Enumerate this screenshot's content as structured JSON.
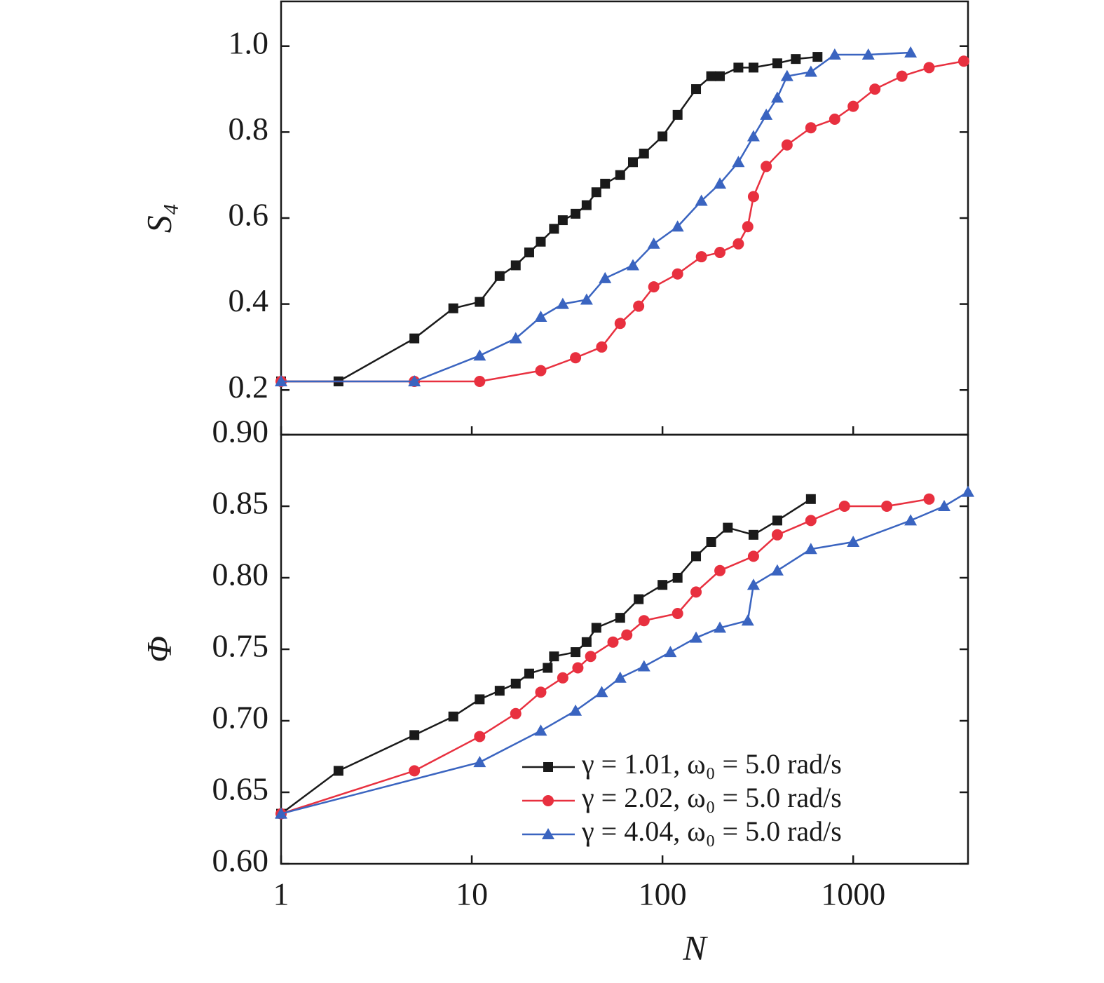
{
  "chart_data": [
    {
      "type": "line",
      "ylabel": "S₄",
      "xlim": [
        1,
        4000
      ],
      "log_x": true,
      "ylim": [
        0.096,
        1.104
      ],
      "yticks": [
        0.2,
        0.4,
        0.6,
        0.8,
        {
          "value": 1,
          "label": "1.0"
        }
      ],
      "series": [
        {
          "color": "#1a1a1a",
          "marker": "square",
          "x": [
            1,
            2,
            5,
            8,
            11,
            14,
            17,
            20,
            23,
            27,
            30,
            35,
            40,
            45,
            50,
            60,
            70,
            80,
            100,
            120,
            150,
            180,
            200,
            250,
            300,
            400,
            500,
            650
          ],
          "values": [
            0.22,
            0.22,
            0.32,
            0.39,
            0.405,
            0.465,
            0.49,
            0.52,
            0.545,
            0.575,
            0.595,
            0.61,
            0.63,
            0.66,
            0.68,
            0.7,
            0.73,
            0.75,
            0.79,
            0.84,
            0.9,
            0.93,
            0.93,
            0.95,
            0.95,
            0.96,
            0.97,
            0.975
          ]
        },
        {
          "color": "#e8303f",
          "marker": "circle",
          "x": [
            1,
            5,
            11,
            23,
            35,
            48,
            60,
            75,
            90,
            120,
            160,
            200,
            250,
            280,
            300,
            350,
            450,
            600,
            800,
            1000,
            1300,
            1800,
            2500,
            3800
          ],
          "values": [
            0.22,
            0.22,
            0.22,
            0.245,
            0.275,
            0.3,
            0.355,
            0.395,
            0.44,
            0.47,
            0.51,
            0.52,
            0.54,
            0.58,
            0.65,
            0.72,
            0.77,
            0.81,
            0.83,
            0.86,
            0.9,
            0.93,
            0.95,
            0.965
          ]
        },
        {
          "color": "#3a64c0",
          "marker": "triangle",
          "x": [
            1,
            5,
            11,
            17,
            23,
            30,
            40,
            50,
            70,
            90,
            120,
            160,
            200,
            250,
            300,
            350,
            400,
            450,
            600,
            800,
            1200,
            2000
          ],
          "values": [
            0.22,
            0.22,
            0.28,
            0.32,
            0.37,
            0.4,
            0.41,
            0.46,
            0.49,
            0.54,
            0.58,
            0.64,
            0.68,
            0.73,
            0.79,
            0.84,
            0.88,
            0.93,
            0.94,
            0.98,
            0.98,
            0.985
          ]
        }
      ]
    },
    {
      "type": "line",
      "ylabel": "Φ",
      "xlabel": "N",
      "xlim": [
        1,
        4000
      ],
      "log_x": true,
      "xticks": [
        1,
        10,
        100,
        1000
      ],
      "ylim": [
        0.6,
        0.9
      ],
      "yticks": [
        {
          "value": 0.6,
          "label": "0.60"
        },
        {
          "value": 0.65,
          "label": "0.65"
        },
        {
          "value": 0.7,
          "label": "0.70"
        },
        {
          "value": 0.75,
          "label": "0.75"
        },
        {
          "value": 0.8,
          "label": "0.80"
        },
        {
          "value": 0.85,
          "label": "0.85"
        },
        {
          "value": 0.9,
          "label": "0.90"
        }
      ],
      "series": [
        {
          "name": "γ = 1.01, ω₀ = 5.0 rad/s",
          "color": "#1a1a1a",
          "marker": "square",
          "x": [
            1,
            2,
            5,
            8,
            11,
            14,
            17,
            20,
            25,
            27,
            35,
            40,
            45,
            60,
            75,
            100,
            120,
            150,
            180,
            220,
            300,
            400,
            600
          ],
          "values": [
            0.635,
            0.665,
            0.69,
            0.703,
            0.715,
            0.721,
            0.726,
            0.733,
            0.737,
            0.745,
            0.748,
            0.755,
            0.765,
            0.772,
            0.785,
            0.795,
            0.8,
            0.815,
            0.825,
            0.835,
            0.83,
            0.84,
            0.855
          ]
        },
        {
          "name": "γ = 2.02, ω₀ = 5.0 rad/s",
          "color": "#e8303f",
          "marker": "circle",
          "x": [
            1,
            5,
            11,
            17,
            23,
            30,
            36,
            42,
            55,
            65,
            80,
            120,
            150,
            200,
            300,
            400,
            600,
            900,
            1500,
            2500
          ],
          "values": [
            0.635,
            0.665,
            0.689,
            0.705,
            0.72,
            0.73,
            0.737,
            0.745,
            0.755,
            0.76,
            0.77,
            0.775,
            0.79,
            0.805,
            0.815,
            0.83,
            0.84,
            0.85,
            0.85,
            0.855
          ]
        },
        {
          "name": "γ = 4.04, ω₀ = 5.0 rad/s",
          "color": "#3a64c0",
          "marker": "triangle",
          "x": [
            1,
            11,
            23,
            35,
            48,
            60,
            80,
            110,
            150,
            200,
            280,
            300,
            400,
            600,
            1000,
            2000,
            3000,
            4000
          ],
          "values": [
            0.635,
            0.671,
            0.693,
            0.707,
            0.72,
            0.73,
            0.738,
            0.748,
            0.758,
            0.765,
            0.77,
            0.795,
            0.805,
            0.82,
            0.825,
            0.84,
            0.85,
            0.86
          ]
        }
      ]
    }
  ]
}
